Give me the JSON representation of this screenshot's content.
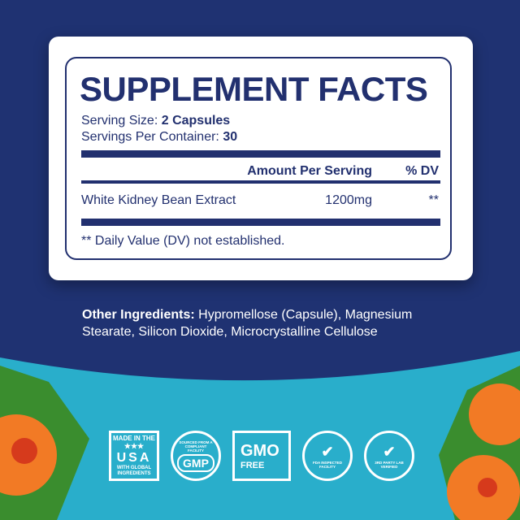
{
  "facts": {
    "title": "SUPPLEMENT FACTS",
    "serving_size_label": "Serving Size:",
    "serving_size_value": "2 Capsules",
    "servings_label": "Servings Per Container:",
    "servings_value": "30",
    "col_amount": "Amount Per Serving",
    "col_dv": "% DV",
    "ingredient": {
      "name": "White Kidney Bean Extract",
      "amount": "1200mg",
      "dv": "**"
    },
    "footnote": "** Daily Value (DV) not established."
  },
  "other": {
    "label": "Other Ingredients:",
    "text": "Hypromellose (Capsule), Magnesium Stearate, Silicon Dioxide, Microcrystalline Cellulose"
  },
  "badges": {
    "usa": {
      "top": "MADE IN THE",
      "stars": "★★★",
      "main": "USA",
      "bottom": "WITH GLOBAL INGREDIENTS"
    },
    "gmp": {
      "ring": "SOURCED FROM A COMPLIANT FACILITY",
      "main": "GMP"
    },
    "gmo": {
      "main": "GMO",
      "sub": "FREE"
    },
    "fda": {
      "ring": "FDA INSPECTED FACILITY"
    },
    "lab": {
      "ring": "3RD PARTY LAB VERIFIED"
    }
  },
  "colors": {
    "navy": "#1f3272",
    "teal": "#29aecb",
    "white": "#ffffff"
  }
}
